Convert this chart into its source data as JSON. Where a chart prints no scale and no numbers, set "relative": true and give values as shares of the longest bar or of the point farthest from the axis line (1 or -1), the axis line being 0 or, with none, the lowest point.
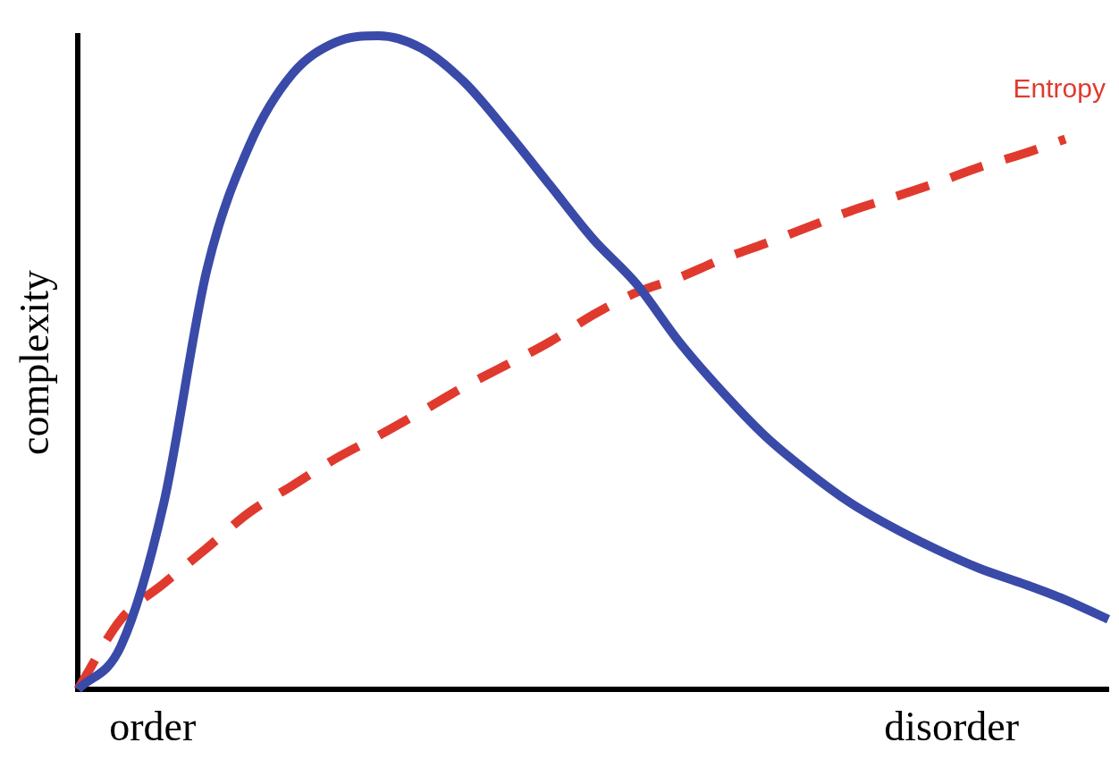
{
  "chart_data": {
    "type": "line",
    "relative": true,
    "ylabel": "complexity",
    "grid": false,
    "legend": false,
    "marker": "none",
    "tick_labels": false,
    "categories": [
      null,
      null,
      null,
      null,
      null,
      null,
      null,
      null,
      null,
      null,
      null,
      null,
      null,
      null,
      null,
      null,
      null,
      null,
      null,
      null,
      null,
      null,
      null,
      null,
      null
    ],
    "annotations": [
      "order",
      "disorder"
    ],
    "series": [
      {
        "color": "#3a4aa8",
        "line_style": "solid",
        "values": [
          0,
          0.066,
          0.285,
          0.641,
          0.833,
          0.942,
          0.99,
          1,
          0.981,
          0.929,
          0.853,
          0.771,
          0.689,
          0.621,
          0.532,
          0.456,
          0.388,
          0.333,
          0.285,
          0.247,
          0.214,
          0.185,
          0.162,
          0.137,
          0.107
        ]
      },
      {
        "name": "Entropy",
        "color": "#e03a2e",
        "line_style": "dashed",
        "values": [
          0,
          0.107,
          0.162,
          0.216,
          0.271,
          0.312,
          0.353,
          0.388,
          0.425,
          0.463,
          0.497,
          0.532,
          0.573,
          0.607,
          0.63,
          0.658,
          0.682,
          0.707,
          0.732,
          0.753,
          0.775,
          0.799,
          0.819,
          0.842,
          null
        ]
      }
    ]
  }
}
